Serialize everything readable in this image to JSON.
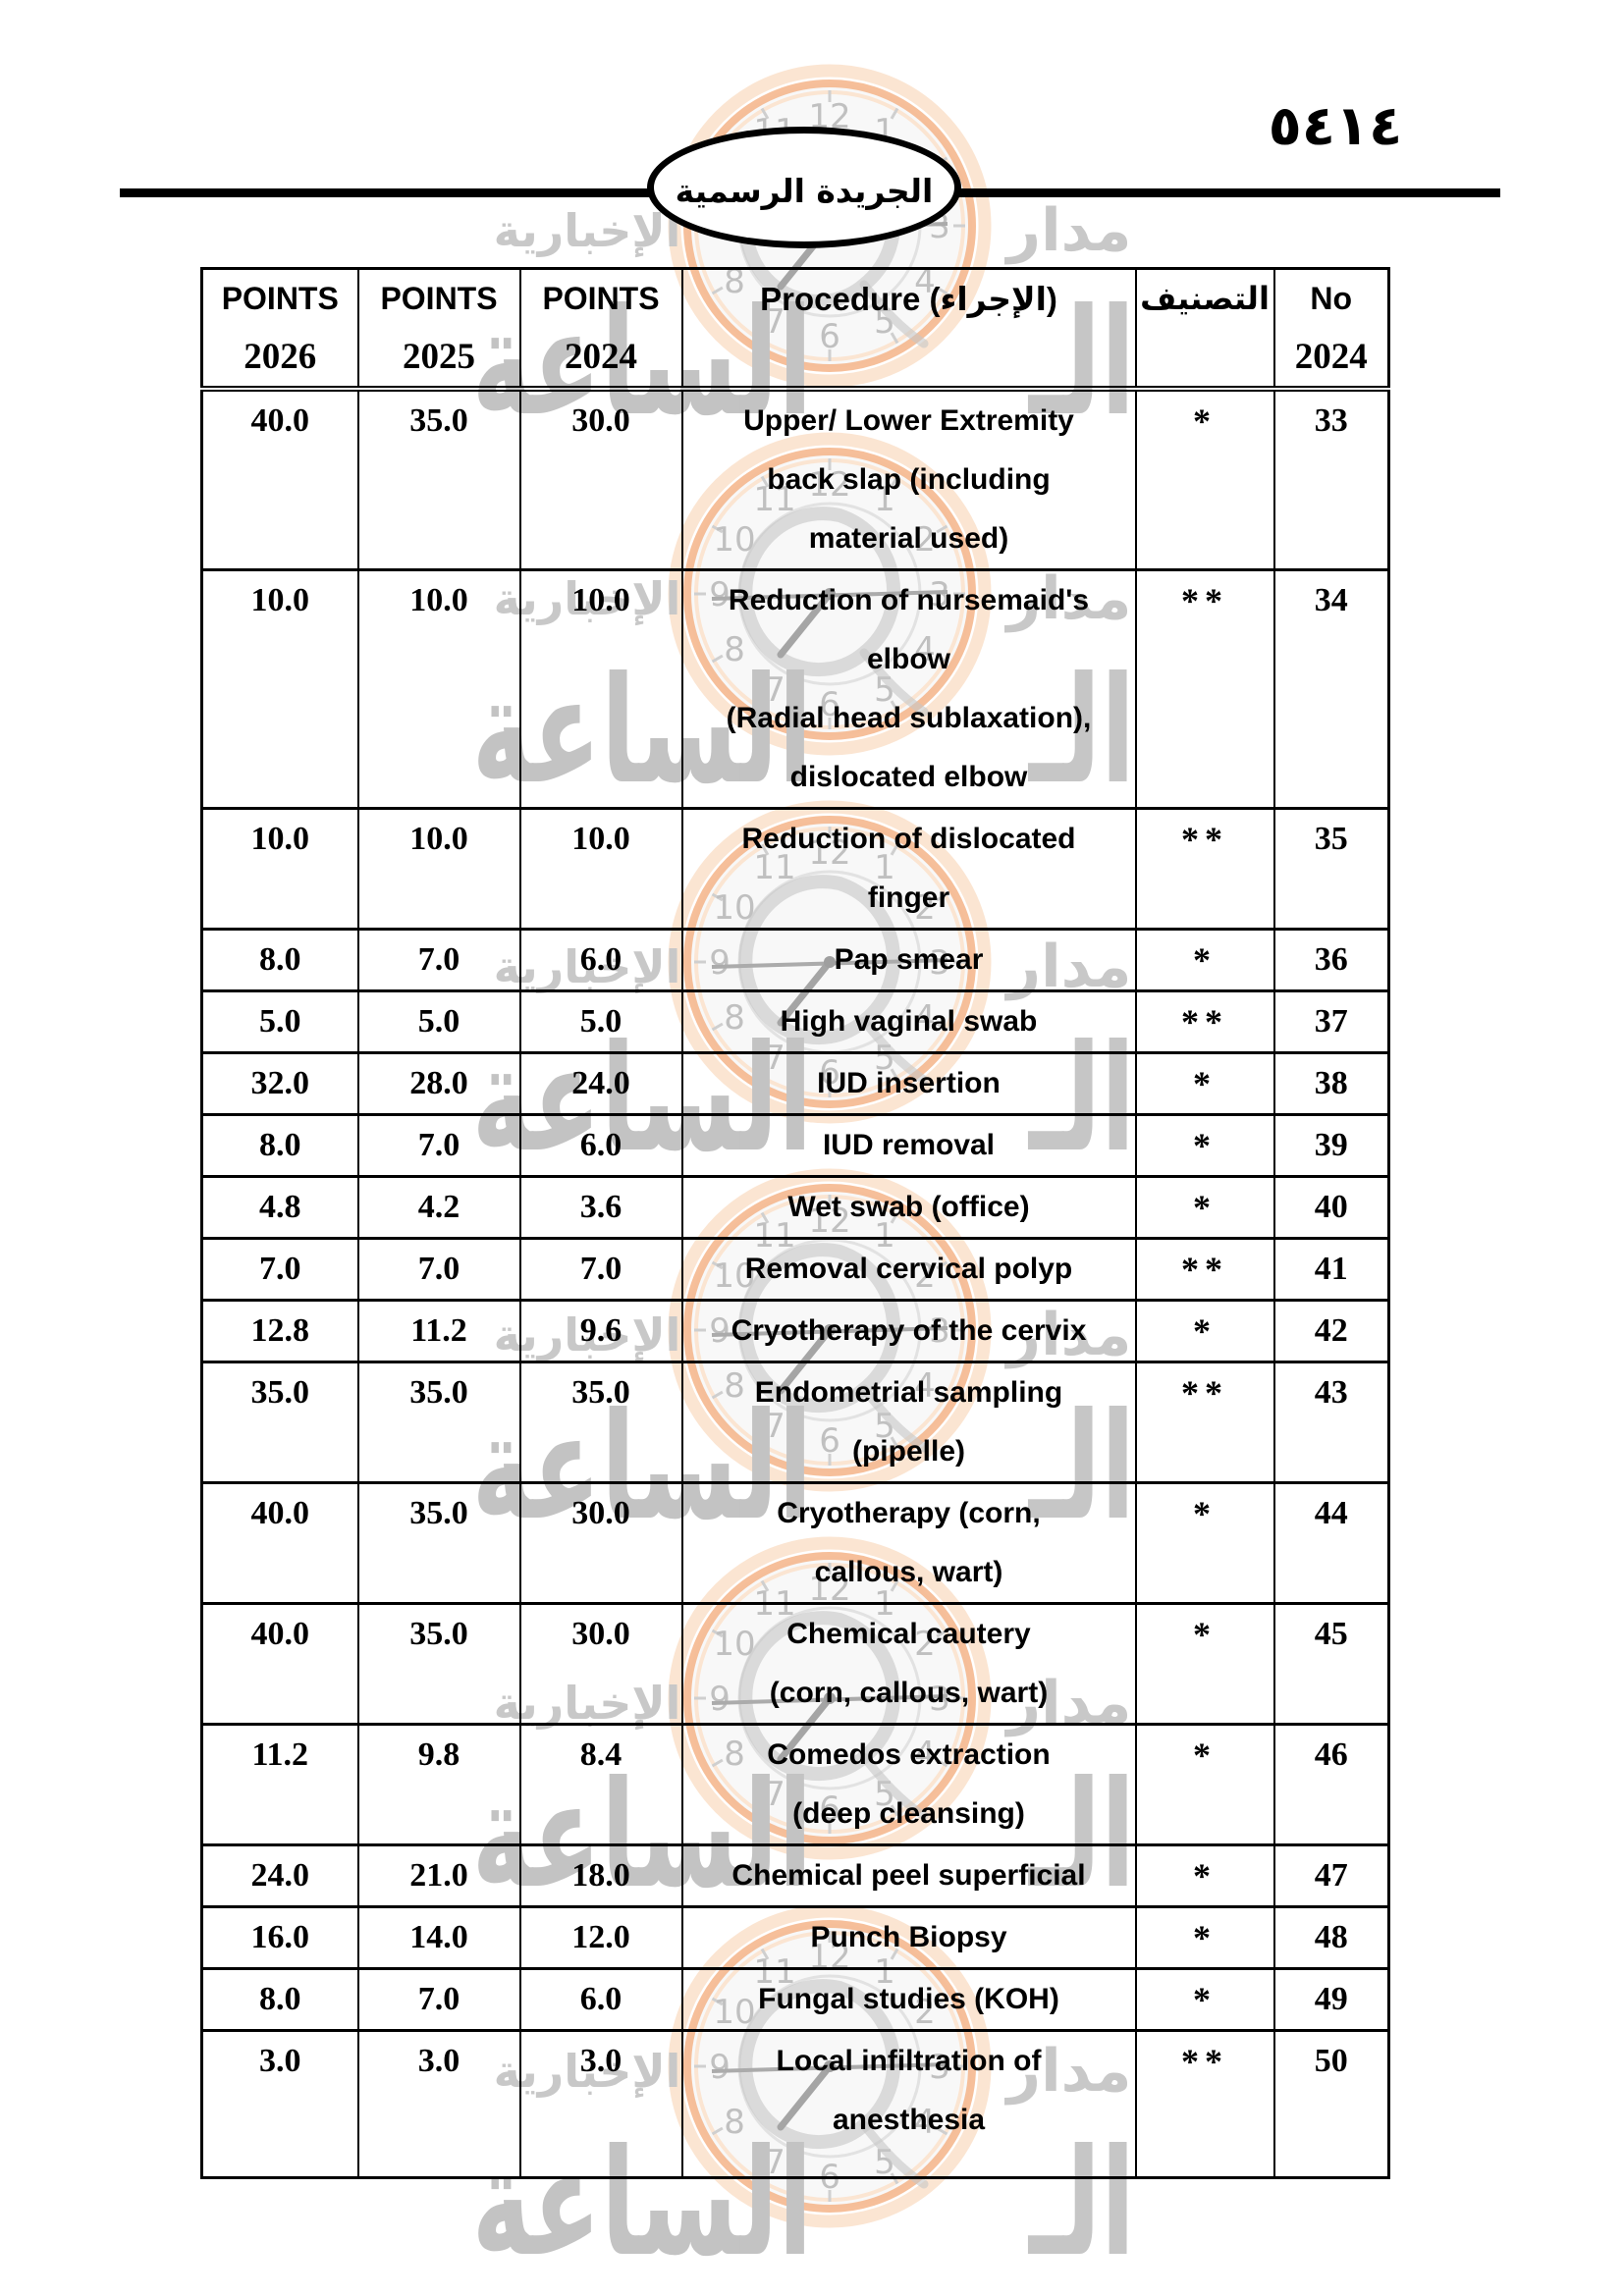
{
  "page": {
    "page_number": "٥٤١٤",
    "gazette_title": "الجريدة الرسمية"
  },
  "watermark": {
    "brand_line": "مدار",
    "brand_main": "الساعة",
    "brand_tagline": "الإخبارية",
    "brand_partial": "الـ",
    "clock_numerals": [
      "12",
      "1",
      "2",
      "3",
      "4",
      "5",
      "6",
      "7",
      "8",
      "9",
      "10",
      "11"
    ],
    "ring_color": "#f4b488",
    "glow_color": "#fbe5d2",
    "text_color": "#c8c8c8"
  },
  "table": {
    "columns": [
      {
        "line1": "POINTS",
        "line2": "2026"
      },
      {
        "line1": "POINTS",
        "line2": "2025"
      },
      {
        "line1": "POINTS",
        "line2": "2024"
      },
      {
        "label": "Procedure (الإجراء)"
      },
      {
        "label": "التصنيف"
      },
      {
        "line1": "No",
        "line2": "2024"
      }
    ],
    "rows": [
      {
        "no": "33",
        "classification": "*",
        "procedure": "Upper/ Lower Extremity\nback slap (including\nmaterial used)",
        "points_2024": "30.0",
        "points_2025": "35.0",
        "points_2026": "40.0"
      },
      {
        "no": "34",
        "classification": "**",
        "procedure": "Reduction of nursemaid's\nelbow\n(Radial head sublaxation),\ndislocated elbow",
        "points_2024": "10.0",
        "points_2025": "10.0",
        "points_2026": "10.0"
      },
      {
        "no": "35",
        "classification": "**",
        "procedure": "Reduction of dislocated\nfinger",
        "points_2024": "10.0",
        "points_2025": "10.0",
        "points_2026": "10.0"
      },
      {
        "no": "36",
        "classification": "*",
        "procedure": "Pap smear",
        "points_2024": "6.0",
        "points_2025": "7.0",
        "points_2026": "8.0"
      },
      {
        "no": "37",
        "classification": "**",
        "procedure": "High vaginal swab",
        "points_2024": "5.0",
        "points_2025": "5.0",
        "points_2026": "5.0"
      },
      {
        "no": "38",
        "classification": "*",
        "procedure": "IUD insertion",
        "points_2024": "24.0",
        "points_2025": "28.0",
        "points_2026": "32.0"
      },
      {
        "no": "39",
        "classification": "*",
        "procedure": "IUD removal",
        "points_2024": "6.0",
        "points_2025": "7.0",
        "points_2026": "8.0"
      },
      {
        "no": "40",
        "classification": "*",
        "procedure": "Wet swab (office)",
        "points_2024": "3.6",
        "points_2025": "4.2",
        "points_2026": "4.8"
      },
      {
        "no": "41",
        "classification": "**",
        "procedure": "Removal cervical polyp",
        "points_2024": "7.0",
        "points_2025": "7.0",
        "points_2026": "7.0"
      },
      {
        "no": "42",
        "classification": "*",
        "procedure": "Cryotherapy of the cervix",
        "points_2024": "9.6",
        "points_2025": "11.2",
        "points_2026": "12.8"
      },
      {
        "no": "43",
        "classification": "**",
        "procedure": "Endometrial sampling\n(pipelle)",
        "points_2024": "35.0",
        "points_2025": "35.0",
        "points_2026": "35.0"
      },
      {
        "no": "44",
        "classification": "*",
        "procedure": "Cryotherapy (corn,\ncallous, wart)",
        "points_2024": "30.0",
        "points_2025": "35.0",
        "points_2026": "40.0"
      },
      {
        "no": "45",
        "classification": "*",
        "procedure": "Chemical cautery\n(corn, callous, wart)",
        "points_2024": "30.0",
        "points_2025": "35.0",
        "points_2026": "40.0"
      },
      {
        "no": "46",
        "classification": "*",
        "procedure": "Comedos extraction\n(deep cleansing)",
        "points_2024": "8.4",
        "points_2025": "9.8",
        "points_2026": "11.2"
      },
      {
        "no": "47",
        "classification": "*",
        "procedure": "Chemical peel superficial",
        "points_2024": "18.0",
        "points_2025": "21.0",
        "points_2026": "24.0"
      },
      {
        "no": "48",
        "classification": "*",
        "procedure": "Punch Biopsy",
        "points_2024": "12.0",
        "points_2025": "14.0",
        "points_2026": "16.0"
      },
      {
        "no": "49",
        "classification": "*",
        "procedure": "Fungal studies (KOH)",
        "points_2024": "6.0",
        "points_2025": "7.0",
        "points_2026": "8.0"
      },
      {
        "no": "50",
        "classification": "**",
        "procedure": "Local infiltration of\nanesthesia",
        "points_2024": "3.0",
        "points_2025": "3.0",
        "points_2026": "3.0"
      }
    ]
  }
}
